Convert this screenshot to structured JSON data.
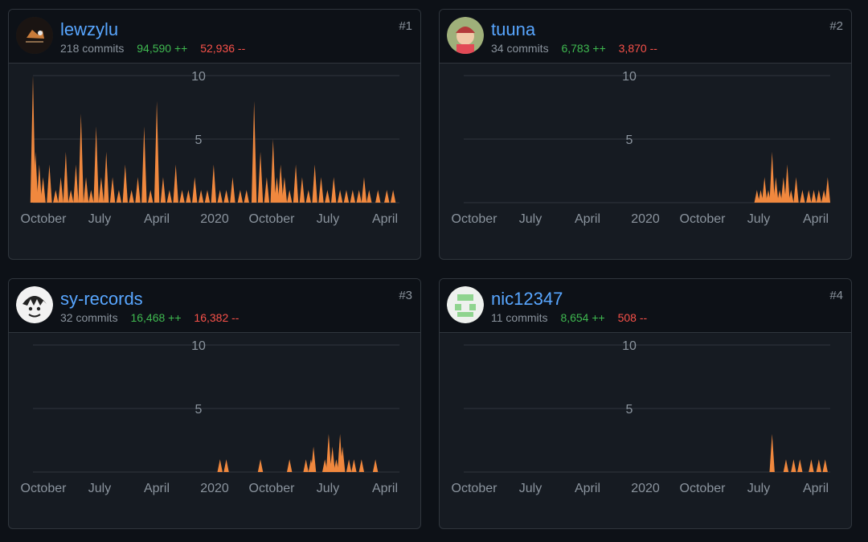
{
  "contributors": [
    {
      "username": "lewzylu",
      "rank": "#1",
      "commits": "218 commits",
      "additions": "94,590 ++",
      "deletions": "52,936 --",
      "avatar": "dark-logo-avatar"
    },
    {
      "username": "tuuna",
      "rank": "#2",
      "commits": "34 commits",
      "additions": "6,783 ++",
      "deletions": "3,870 --",
      "avatar": "baby-photo-avatar"
    },
    {
      "username": "sy-records",
      "rank": "#3",
      "commits": "32 commits",
      "additions": "16,468 ++",
      "deletions": "16,382 --",
      "avatar": "anime-character-avatar"
    },
    {
      "username": "nic12347",
      "rank": "#4",
      "commits": "11 commits",
      "additions": "8,654 ++",
      "deletions": "508 --",
      "avatar": "identicon-avatar"
    }
  ],
  "colors": {
    "area": "#f0883e",
    "link": "#58a6ff",
    "add": "#3fb950",
    "del": "#f85149",
    "grid": "#30363d"
  },
  "chart_data": [
    {
      "type": "area",
      "series": [
        {
          "x": [
            0.0,
            0.2,
            0.5,
            0.8,
            1.3,
            1.8,
            2.2,
            2.6,
            3.0,
            3.4,
            3.8,
            4.2,
            4.6,
            5.0,
            5.4,
            5.8,
            6.3,
            6.8,
            7.3,
            7.8,
            8.3,
            8.8,
            9.3,
            9.8,
            10.3,
            10.8,
            11.3,
            11.8,
            12.3,
            12.8,
            13.3,
            13.8,
            14.3,
            14.8,
            15.3,
            15.8,
            16.4,
            16.9,
            17.5,
            18.0,
            18.5,
            19.0,
            19.3,
            19.6,
            19.9,
            20.3,
            20.8,
            21.3,
            21.8,
            22.3,
            22.8,
            23.3,
            23.8,
            24.3,
            24.8,
            25.3,
            25.8,
            26.2,
            26.6,
            27.3,
            28.0,
            28.5
          ],
          "y": [
            10,
            4,
            3,
            2,
            3,
            1,
            2,
            4,
            1,
            3,
            7,
            2,
            1,
            6,
            2,
            4,
            2,
            1,
            3,
            1,
            2,
            6,
            1,
            8,
            2,
            1,
            3,
            1,
            1,
            2,
            1,
            1,
            3,
            1,
            1,
            2,
            1,
            1,
            8,
            4,
            2,
            5,
            2,
            3,
            2,
            1,
            3,
            2,
            1,
            3,
            2,
            1,
            2,
            1,
            1,
            1,
            1,
            2,
            1,
            1,
            1,
            1
          ]
        }
      ],
      "xlabel_ticks": [
        "October",
        "July",
        "April",
        "2020",
        "October",
        "July",
        "April"
      ],
      "ylim": [
        0,
        10
      ],
      "yticks": [
        "10",
        "5"
      ],
      "grid": true
    },
    {
      "type": "area",
      "series": [
        {
          "x": [
            23.2,
            23.5,
            23.8,
            24.1,
            24.4,
            24.7,
            25.0,
            25.3,
            25.6,
            25.9,
            26.3,
            26.8,
            27.3,
            27.7,
            28.1,
            28.5,
            28.8
          ],
          "y": [
            1,
            1,
            2,
            1,
            4,
            2,
            1,
            2,
            3,
            1,
            2,
            1,
            1,
            1,
            1,
            1,
            2
          ]
        }
      ],
      "xlabel_ticks": [
        "October",
        "July",
        "April",
        "2020",
        "October",
        "July",
        "April"
      ],
      "ylim": [
        0,
        10
      ],
      "yticks": [
        "10",
        "5"
      ],
      "grid": true
    },
    {
      "type": "area",
      "series": [
        {
          "x": [
            14.8,
            15.3,
            18.0,
            20.3,
            21.6,
            22.0,
            22.2,
            23.1,
            23.4,
            23.7,
            24.0,
            24.3,
            24.5,
            25.0,
            25.4,
            26.0,
            27.1
          ],
          "y": [
            1,
            1,
            1,
            1,
            1,
            1,
            2,
            1,
            3,
            2,
            1,
            3,
            2,
            1,
            1,
            1,
            1
          ]
        }
      ],
      "xlabel_ticks": [
        "October",
        "July",
        "April",
        "2020",
        "October",
        "July",
        "April"
      ],
      "ylim": [
        0,
        10
      ],
      "yticks": [
        "10",
        "5"
      ],
      "grid": true
    },
    {
      "type": "area",
      "series": [
        {
          "x": [
            24.4,
            25.5,
            26.1,
            26.6,
            27.5,
            28.1,
            28.6
          ],
          "y": [
            3,
            1,
            1,
            1,
            1,
            1,
            1
          ]
        }
      ],
      "xlabel_ticks": [
        "October",
        "July",
        "April",
        "2020",
        "October",
        "July",
        "April"
      ],
      "ylim": [
        0,
        10
      ],
      "yticks": [
        "10",
        "5"
      ],
      "grid": true
    }
  ]
}
